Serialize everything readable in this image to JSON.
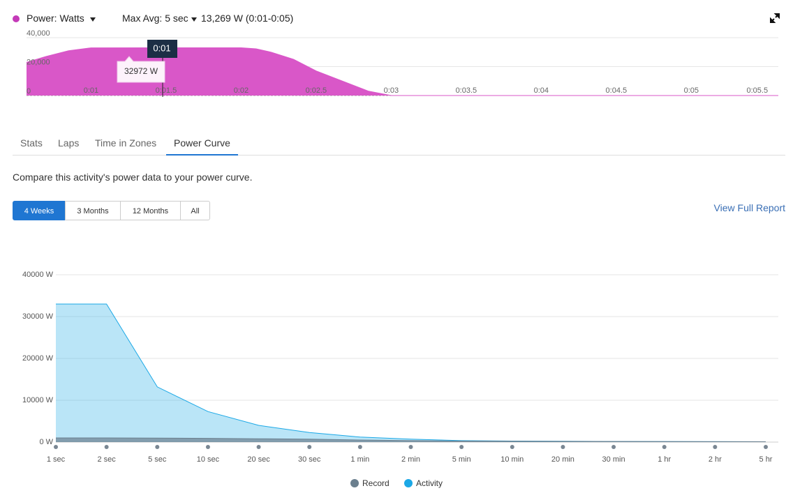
{
  "header": {
    "metric": "Power: Watts",
    "max_avg": "Max Avg: 5 sec",
    "max_avg_value": "13,269 W (0:01-0:05)"
  },
  "chart_data": [
    {
      "type": "area",
      "x": [
        0.57,
        0.7,
        0.85,
        1.0,
        1.5,
        2.0,
        2.1,
        2.2,
        2.35,
        2.5,
        2.7,
        2.85,
        3.0,
        3.5,
        4.0,
        4.5,
        5.0,
        5.58
      ],
      "values": [
        23000,
        27000,
        31000,
        32972,
        33000,
        33000,
        32300,
        30000,
        25000,
        17000,
        9000,
        3000,
        0,
        0,
        0,
        0,
        0,
        0
      ],
      "color": "#d957c8",
      "xlim": [
        0.57,
        5.58
      ],
      "xticks": [
        {
          "value": 1,
          "label": "0:01"
        },
        {
          "value": 1.5,
          "label": "0:01.5"
        },
        {
          "value": 2,
          "label": "0:02"
        },
        {
          "value": 2.5,
          "label": "0:02.5"
        },
        {
          "value": 3,
          "label": "0:03"
        },
        {
          "value": 3.5,
          "label": "0:03.5"
        },
        {
          "value": 4,
          "label": "0:04"
        },
        {
          "value": 4.5,
          "label": "0:04.5"
        },
        {
          "value": 5,
          "label": "0:05"
        },
        {
          "value": 5.5,
          "label": "0:05.5"
        }
      ],
      "ylim": [
        0,
        40000
      ],
      "yticks": [
        0,
        {
          "value": 20000,
          "label": "20,000"
        },
        {
          "value": 40000,
          "label": "40,000"
        }
      ],
      "grid": true,
      "cursor_label": "0:01",
      "tooltip": "32972 W"
    },
    {
      "type": "area",
      "categories": [
        "1 sec",
        "2 sec",
        "5 sec",
        "10 sec",
        "20 sec",
        "30 sec",
        "1 min",
        "2 min",
        "5 min",
        "10 min",
        "20 min",
        "30 min",
        "1 hr",
        "2 hr",
        "5 hr"
      ],
      "series": [
        {
          "name": "Record",
          "color": "#6b7f8e",
          "values": [
            1000,
            1000,
            950,
            900,
            800,
            700,
            500,
            350,
            250,
            200,
            170,
            150,
            120,
            100,
            80
          ]
        },
        {
          "name": "Activity",
          "color": "#1ba8e6",
          "values": [
            33000,
            33000,
            13200,
            7300,
            4000,
            2300,
            1200,
            700,
            350,
            250,
            200,
            150,
            120,
            100,
            80
          ]
        }
      ],
      "ylim": [
        0,
        40000
      ],
      "yticks": [
        {
          "value": 0,
          "label": "0 W"
        },
        {
          "value": 10000,
          "label": "10000 W"
        },
        {
          "value": 20000,
          "label": "20000 W"
        },
        {
          "value": 30000,
          "label": "30000 W"
        },
        {
          "value": 40000,
          "label": "40000 W"
        }
      ],
      "grid": true,
      "legend": "bottom"
    }
  ],
  "tabs": {
    "items": [
      "Stats",
      "Laps",
      "Time in Zones",
      "Power Curve"
    ],
    "active": 3
  },
  "description": "Compare this activity's power data to your power curve.",
  "ranges": {
    "items": [
      "4 Weeks",
      "3 Months",
      "12 Months",
      "All"
    ],
    "active": 0
  },
  "link": "View Full Report"
}
